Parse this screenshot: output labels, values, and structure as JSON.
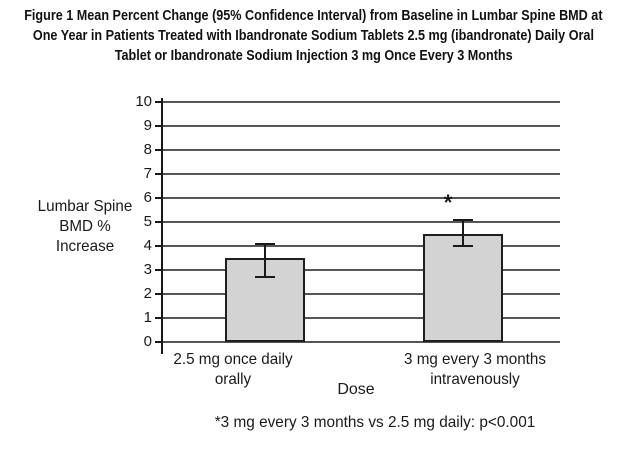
{
  "figure": {
    "title_lines": [
      "Figure 1 Mean Percent Change (95% Confidence Interval) from Baseline in Lumbar Spine BMD at",
      "One Year in Patients Treated with Ibandronate Sodium Tablets 2.5 mg (ibandronate) Daily Oral",
      "Tablet or Ibandronate Sodium Injection 3 mg Once Every 3 Months"
    ]
  },
  "chart_data": {
    "type": "bar",
    "title": "Figure 1 Mean Percent Change (95% Confidence Interval) from Baseline in Lumbar Spine BMD at One Year in Patients Treated with Ibandronate Sodium Tablets 2.5 mg (ibandronate) Daily Oral Tablet or Ibandronate Sodium Injection 3 mg Once Every 3 Months",
    "xlabel": "Dose",
    "ylabel": "Lumbar Spine BMD % Increase",
    "ylabel_lines": [
      "Lumbar Spine",
      "BMD %",
      "Increase"
    ],
    "ylim": [
      0,
      10
    ],
    "yticks": [
      0,
      1,
      2,
      3,
      4,
      5,
      6,
      7,
      8,
      9,
      10
    ],
    "grid": true,
    "legend": "none",
    "categories": [
      "2.5 mg once daily orally",
      "3 mg every 3 months intravenously"
    ],
    "category_label_lines": [
      [
        "2.5 mg once daily",
        "orally"
      ],
      [
        "3 mg every 3 months",
        "intravenously"
      ]
    ],
    "values": [
      3.5,
      4.5
    ],
    "ci_low": [
      2.7,
      4.0
    ],
    "ci_high": [
      4.1,
      5.1
    ],
    "annotations": [
      {
        "category_index": 1,
        "text": "*"
      }
    ],
    "footnote": "*3 mg every 3 months vs 2.5 mg daily: p<0.001",
    "colors": {
      "bar_fill": "#d3d3d3",
      "bar_border": "#1f1f1f",
      "gridline": "#565656",
      "axis": "#1a1a1a",
      "text": "#1a1a1a",
      "background": "#ffffff"
    }
  }
}
